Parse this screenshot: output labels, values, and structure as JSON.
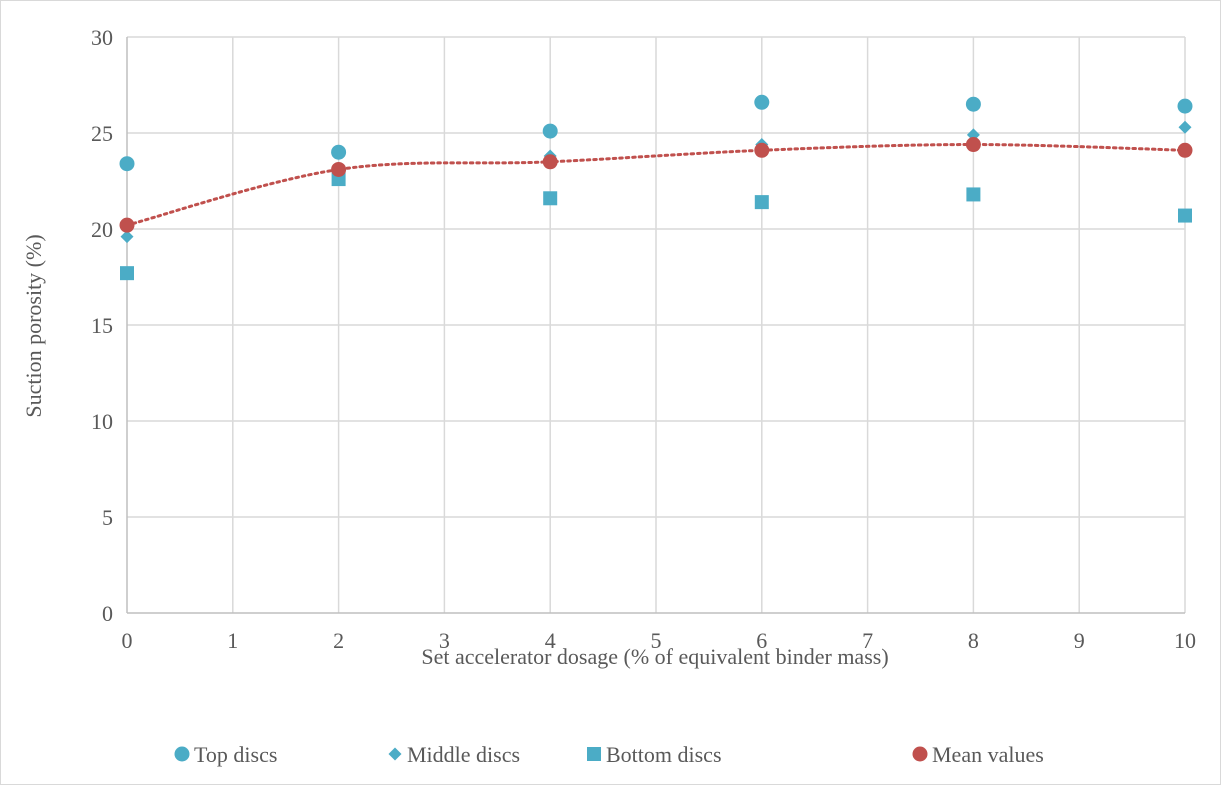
{
  "chart_data": {
    "type": "scatter",
    "xlabel": "Set accelerator dosage (% of equivalent binder mass)",
    "ylabel": "Suction porosity (%)",
    "xlim": [
      0,
      10
    ],
    "ylim": [
      0,
      30
    ],
    "xticks": [
      "0",
      "1",
      "2",
      "3",
      "4",
      "5",
      "6",
      "7",
      "8",
      "9",
      "10"
    ],
    "yticks": [
      "0",
      "5",
      "10",
      "15",
      "20",
      "25",
      "30"
    ],
    "grid": true,
    "legend_position": "bottom",
    "series": [
      {
        "name": "Top discs",
        "marker": "circle",
        "color": "#4BACC6",
        "points": [
          [
            0,
            23.4
          ],
          [
            2,
            24.0
          ],
          [
            4,
            25.1
          ],
          [
            6,
            26.6
          ],
          [
            8,
            26.5
          ],
          [
            10,
            26.4
          ]
        ]
      },
      {
        "name": "Middle discs",
        "marker": "diamond",
        "color": "#4BACC6",
        "points": [
          [
            0,
            19.6
          ],
          [
            2,
            23.0
          ],
          [
            4,
            23.8
          ],
          [
            6,
            24.4
          ],
          [
            8,
            24.9
          ],
          [
            10,
            25.3
          ]
        ]
      },
      {
        "name": "Bottom discs",
        "marker": "square",
        "color": "#4BACC6",
        "points": [
          [
            0,
            17.7
          ],
          [
            2,
            22.6
          ],
          [
            4,
            21.6
          ],
          [
            6,
            21.4
          ],
          [
            8,
            21.8
          ],
          [
            10,
            20.7
          ]
        ]
      },
      {
        "name": "Mean values",
        "marker": "circle",
        "color": "#C0504D",
        "points": [
          [
            0,
            20.2
          ],
          [
            2,
            23.1
          ],
          [
            4,
            23.5
          ],
          [
            6,
            24.1
          ],
          [
            8,
            24.4
          ],
          [
            10,
            24.1
          ]
        ],
        "trendline": "dotted"
      }
    ]
  }
}
